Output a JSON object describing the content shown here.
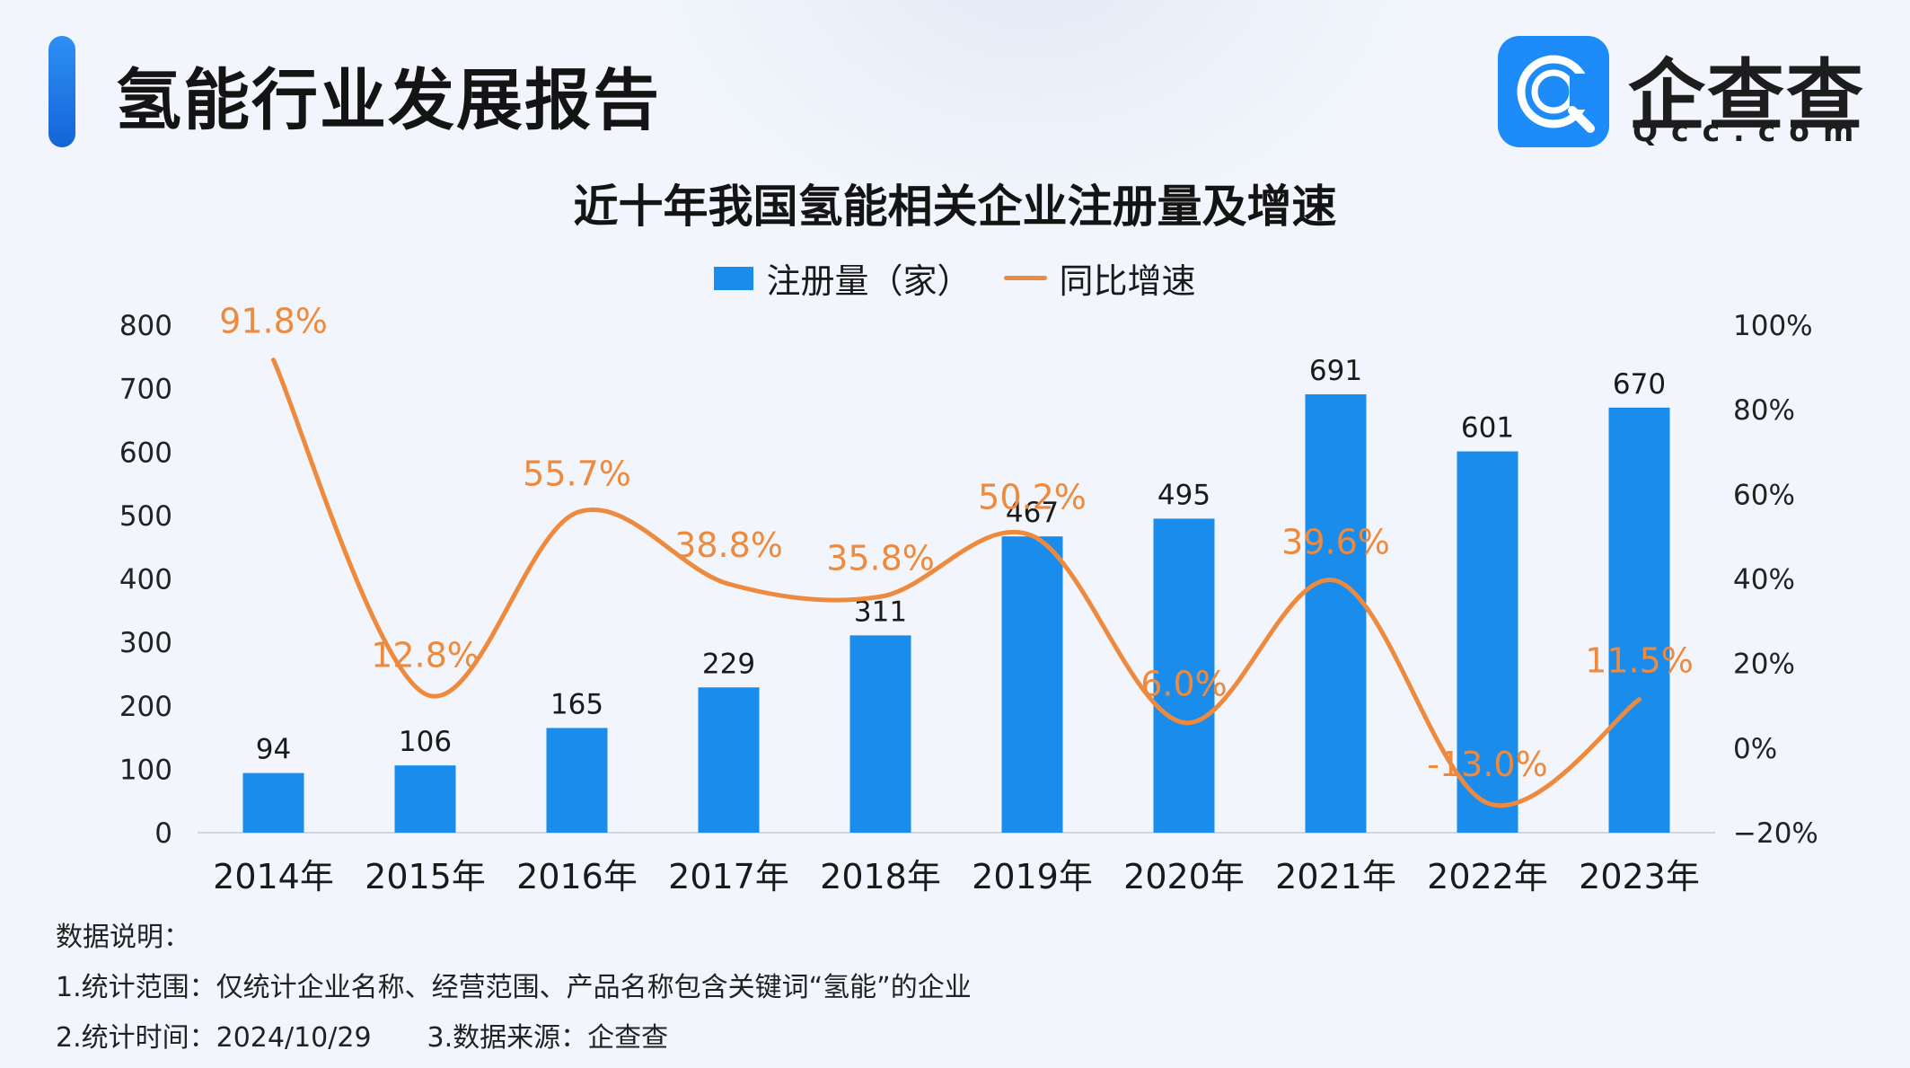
{
  "header": {
    "title": "氢能行业发展报告",
    "logo_name": "企查查",
    "logo_domain": "Qcc.com"
  },
  "colors": {
    "bar": "#1a8cec",
    "line": "#ee8a3e",
    "brand": "#1d8cf8"
  },
  "chart_data": {
    "type": "bar",
    "title": "近十年我国氢能相关企业注册量及增速",
    "categories": [
      "2014年",
      "2015年",
      "2016年",
      "2017年",
      "2018年",
      "2019年",
      "2020年",
      "2021年",
      "2022年",
      "2023年"
    ],
    "series": [
      {
        "name": "注册量（家）",
        "type": "bar",
        "axis": "left",
        "values": [
          94,
          106,
          165,
          229,
          311,
          467,
          495,
          691,
          601,
          670
        ],
        "labels": [
          "94",
          "106",
          "165",
          "229",
          "311",
          "467",
          "495",
          "691",
          "601",
          "670"
        ]
      },
      {
        "name": "同比增速",
        "type": "line",
        "axis": "right",
        "values": [
          91.8,
          12.8,
          55.7,
          38.8,
          35.8,
          50.2,
          6.0,
          39.6,
          -13.0,
          11.5
        ],
        "labels": [
          "91.8%",
          "12.8%",
          "55.7%",
          "38.8%",
          "35.8%",
          "50.2%",
          "6.0%",
          "39.6%",
          "-13.0%",
          "11.5%"
        ]
      }
    ],
    "left_axis": {
      "ylim": [
        0,
        800
      ],
      "ticks": [
        "0",
        "100",
        "200",
        "300",
        "400",
        "500",
        "600",
        "700",
        "800"
      ]
    },
    "right_axis": {
      "ylim": [
        -20,
        100
      ],
      "ticks": [
        "−20%",
        "0%",
        "20%",
        "40%",
        "60%",
        "80%",
        "100%"
      ]
    },
    "grid": false,
    "legend_position": "top-center"
  },
  "notes": {
    "heading": "数据说明：",
    "scope": "1.统计范围：仅统计企业名称、经营范围、产品名称包含关键词“氢能”的企业",
    "time": "2.统计时间：2024/10/29",
    "source": "3.数据来源：企查查"
  }
}
